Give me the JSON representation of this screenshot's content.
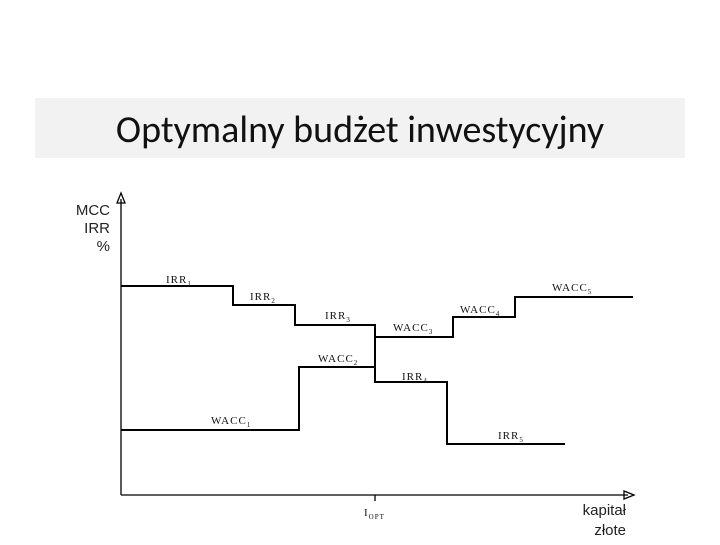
{
  "header": {
    "title": "Optymalny budżet inwestycyjny"
  },
  "diagram": {
    "y_axis_label": [
      "MCC",
      "IRR",
      "%"
    ],
    "x_axis_label": [
      "kapitał",
      "złote"
    ],
    "x_marker": {
      "text": "I",
      "sub": "OPT"
    },
    "step_labels": [
      {
        "text": "IRR",
        "sub": "1"
      },
      {
        "text": "IRR",
        "sub": "2"
      },
      {
        "text": "IRR",
        "sub": "3"
      },
      {
        "text": "IRR",
        "sub": "4"
      },
      {
        "text": "IRR",
        "sub": "5"
      },
      {
        "text": "WACC",
        "sub": "1"
      },
      {
        "text": "WACC",
        "sub": "2"
      },
      {
        "text": "WACC",
        "sub": "3"
      },
      {
        "text": "WACC",
        "sub": "4"
      },
      {
        "text": "WACC",
        "sub": "5"
      }
    ]
  }
}
